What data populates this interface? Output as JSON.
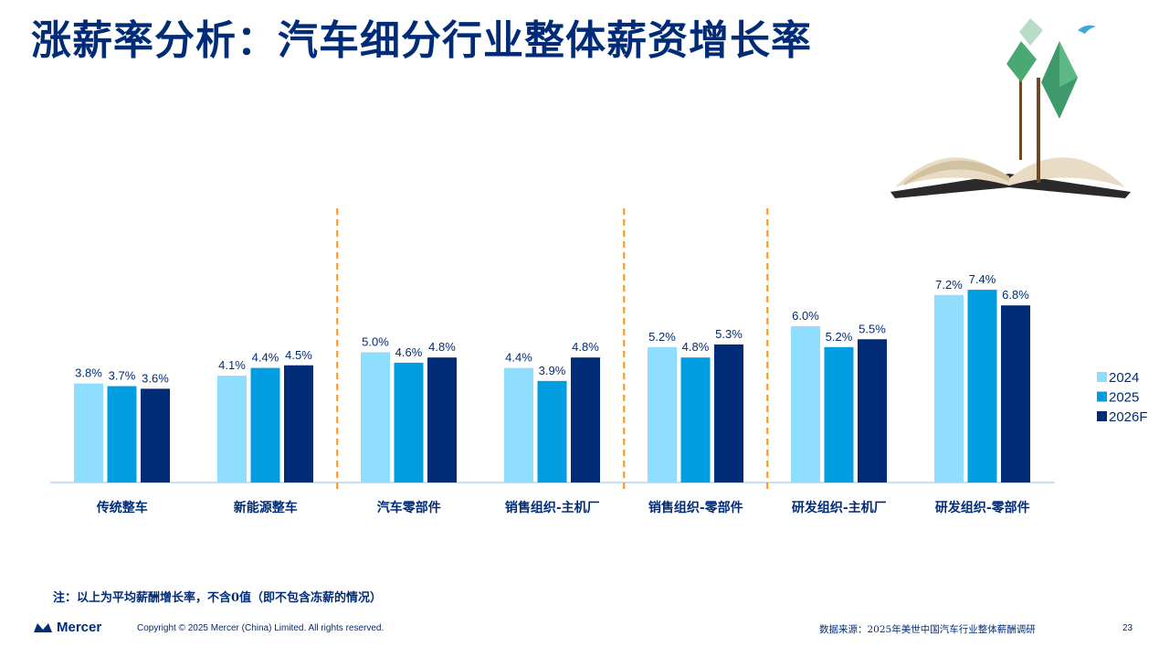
{
  "title": "涨薪率分析：汽车细分行业整体薪资增长率",
  "chart_data": {
    "type": "bar",
    "categories": [
      "传统整车",
      "新能源整车",
      "汽车零部件",
      "销售组织-主机厂",
      "销售组织-零部件",
      "研发组织-主机厂",
      "研发组织-零部件"
    ],
    "series": [
      {
        "name": "2024",
        "color": "#8FDDFF",
        "values": [
          3.8,
          4.1,
          5.0,
          4.4,
          5.2,
          6.0,
          7.2
        ]
      },
      {
        "name": "2025",
        "color": "#009DE0",
        "values": [
          3.7,
          4.4,
          4.6,
          3.9,
          4.8,
          5.2,
          7.4
        ]
      },
      {
        "name": "2026F",
        "color": "#002C77",
        "values": [
          3.6,
          4.5,
          4.8,
          4.8,
          5.3,
          5.5,
          6.8
        ]
      }
    ],
    "value_format": "%",
    "legend": "right",
    "separators_after": [
      1,
      3,
      4
    ],
    "ylim": [
      0,
      7.4
    ]
  },
  "note": "注：以上为平均薪酬增长率，不含0值（即不包含冻薪的情况）",
  "footer": {
    "logo": "Mercer",
    "copyright": "Copyright © 2025 Mercer (China) Limited. All rights reserved.",
    "source": "数据来源：2025年美世中国汽车行业整体薪酬调研",
    "page": "23"
  }
}
